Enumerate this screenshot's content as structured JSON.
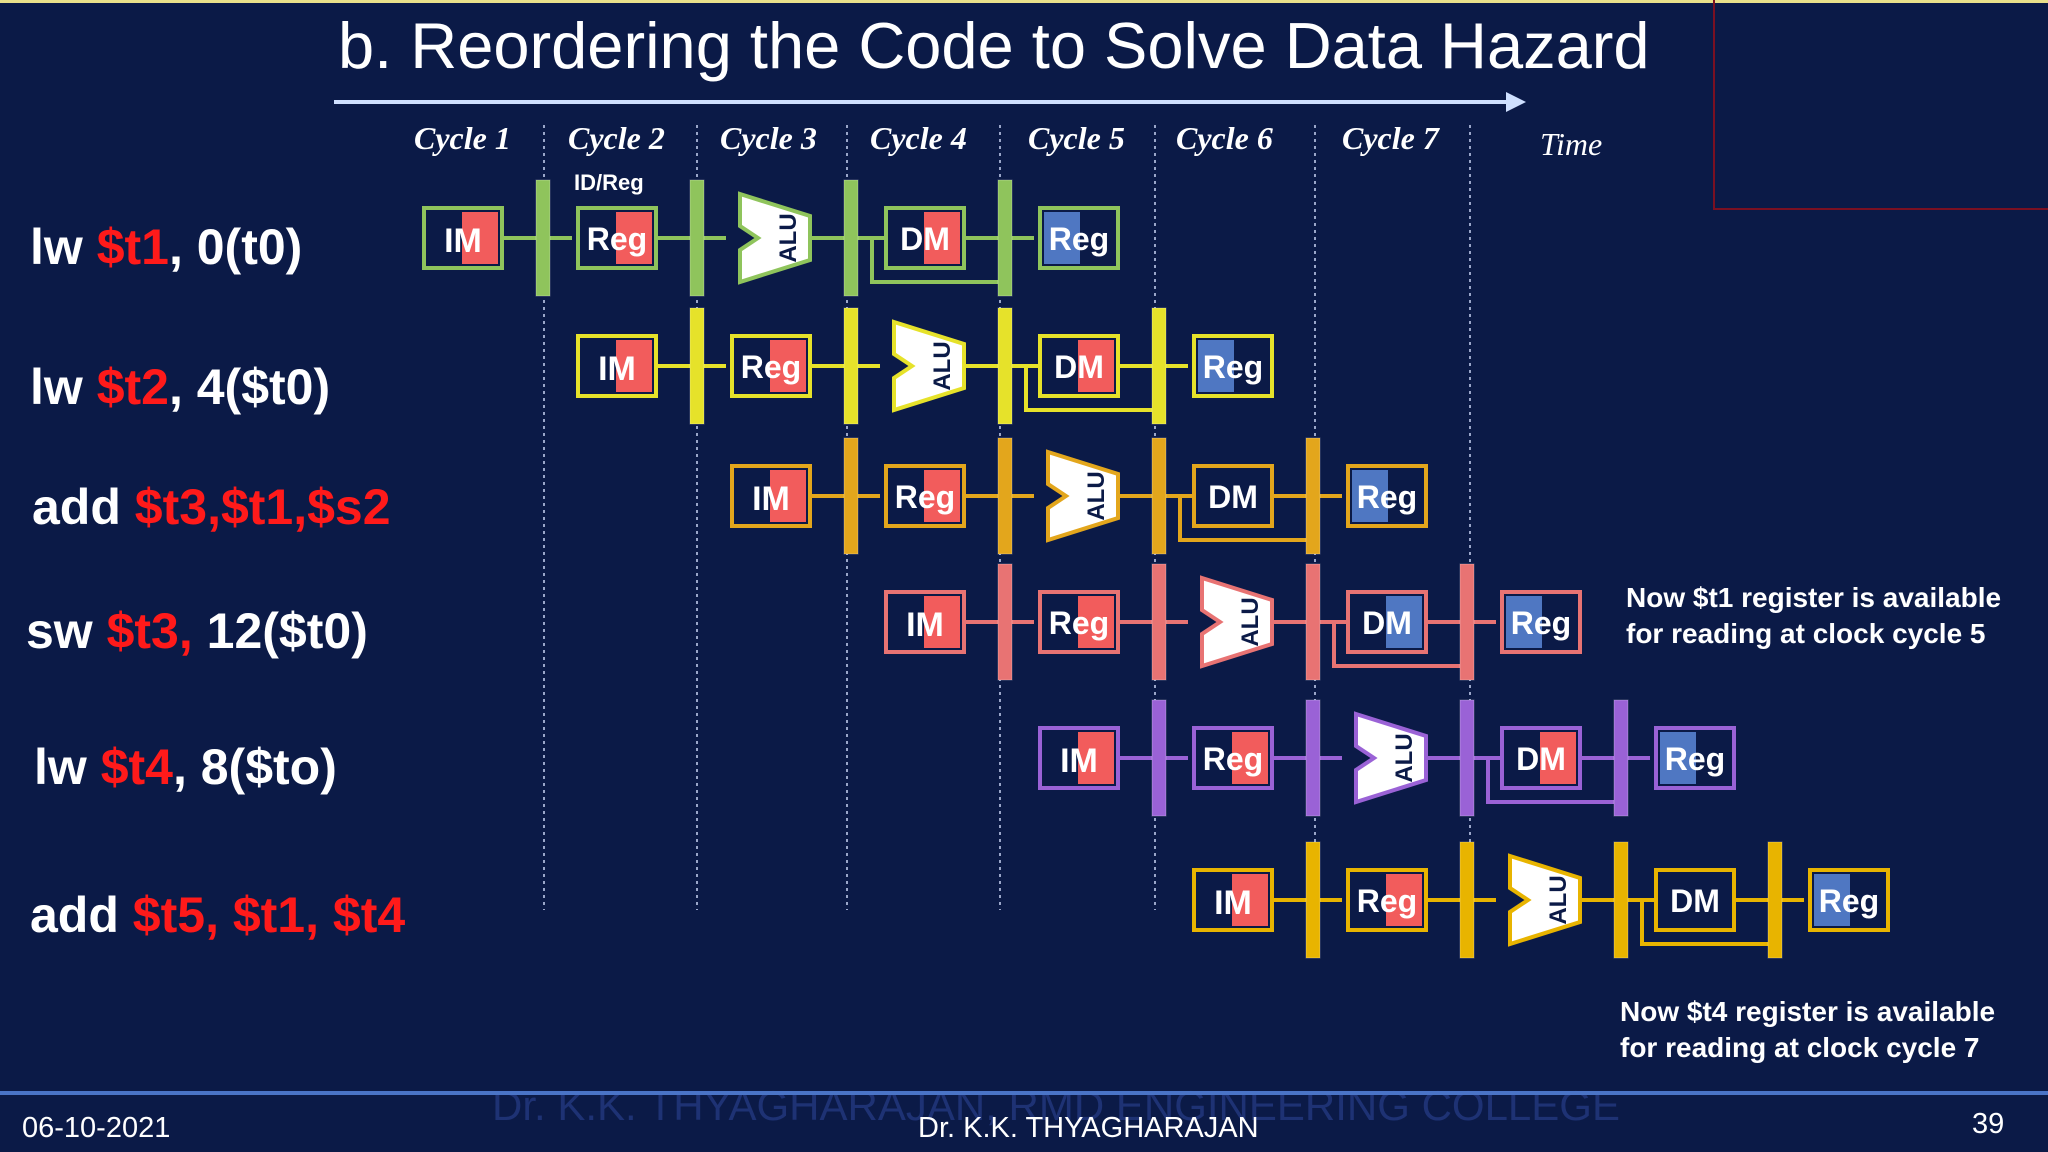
{
  "slide": {
    "title": "b. Reordering the Code to Solve Data Hazard",
    "time_label": "Time",
    "stage_reg_label": "ID/Reg",
    "cycles": [
      "Cycle 1",
      "Cycle 2",
      "Cycle 3",
      "Cycle 4",
      "Cycle 5",
      "Cycle 6",
      "Cycle 7"
    ],
    "instructions": [
      {
        "op": "lw ",
        "reg": "$t1",
        "rest": ", 0(t0)",
        "color": "#8fc45c"
      },
      {
        "op": "lw ",
        "reg": "$t2",
        "rest": ", 4($t0)",
        "color": "#e6e22a"
      },
      {
        "op": "add ",
        "reg": "$t3,$t1,$s2",
        "rest": "",
        "color": "#e3a61c"
      },
      {
        "op": "sw ",
        "reg": "$t3,",
        "rest": " 12($t0)",
        "color": "#e87373"
      },
      {
        "op": "lw ",
        "reg": "$t4",
        "rest": ", 8($to)",
        "color": "#9a62d6"
      },
      {
        "op": "add ",
        "reg": "$t5, $t1, $t4",
        "rest": "",
        "color": "#e8b400"
      }
    ],
    "stages": {
      "im": "IM",
      "reg": "Reg",
      "alu": "ALU",
      "dm": "DM"
    },
    "note1": [
      "Now $t1 register is available",
      "for reading at clock cycle 5"
    ],
    "note2": [
      "Now $t4 register is available",
      "for reading at clock cycle 7"
    ],
    "footer": {
      "date": "06-10-2021",
      "author": "Dr. K.K. THYAGHARAJAN",
      "watermark": "Dr. K.K. THYAGHARAJAN, RMD ENGINEERING COLLEGE",
      "page": "39"
    },
    "colors": {
      "background": "#0b1a47",
      "register_red": "#ff1a1a",
      "read_blue": "#4f77c2",
      "write_red": "#f25c5c"
    }
  }
}
